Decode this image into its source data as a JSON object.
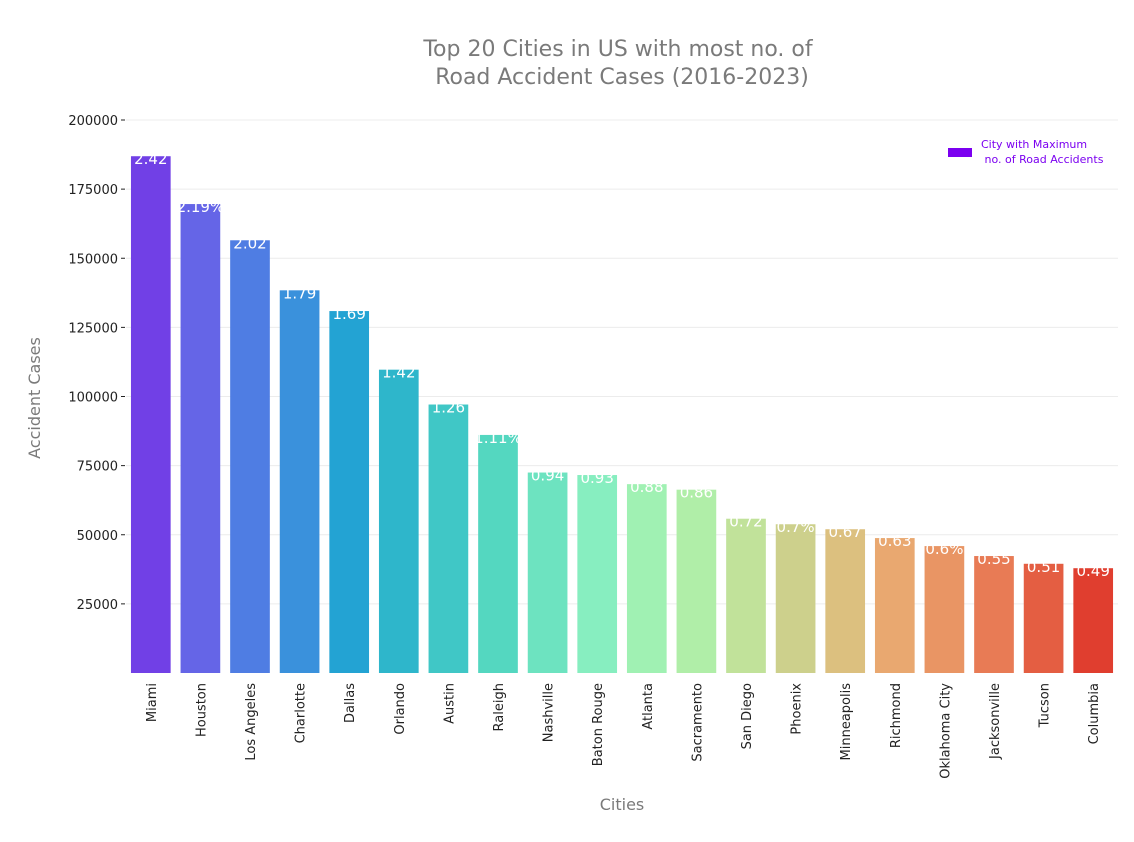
{
  "chart_data": {
    "type": "bar",
    "title_lines": [
      "Top 20 Cities in US with most no. of",
      "Road Accident Cases (2016-2023)"
    ],
    "xlabel": "Cities",
    "ylabel": "Accident Cases",
    "ylim": [
      0,
      200000
    ],
    "yticks": [
      "25000",
      "50000",
      "75000",
      "100000",
      "125000",
      "150000",
      "175000",
      "200000"
    ],
    "grid": "horizontal",
    "legend_placement": "top-right",
    "legend_lines": [
      "City with Maximum",
      " no. of Road Accidents"
    ],
    "legend_color": "#7b00f0",
    "categories": [
      "Miami",
      "Houston",
      "Los Angeles",
      "Charlotte",
      "Dallas",
      "Orlando",
      "Austin",
      "Raleigh",
      "Nashville",
      "Baton Rouge",
      "Atlanta",
      "Sacramento",
      "San Diego",
      "Phoenix",
      "Minneapolis",
      "Richmond",
      "Oklahoma City",
      "Jacksonville",
      "Tucson",
      "Columbia"
    ],
    "values": [
      186900,
      169600,
      156500,
      138400,
      130900,
      109700,
      97100,
      86100,
      72500,
      71600,
      68300,
      66300,
      55800,
      53800,
      52000,
      48800,
      45900,
      42300,
      39500,
      37900
    ],
    "labels": [
      "2.42",
      "2.19%",
      "2.02",
      "1.79",
      "1.69",
      "1.42",
      "1.26",
      "1.11%",
      "0.94",
      "0.93",
      "0.88",
      "0.86",
      "0.72",
      "0.7%",
      "0.67",
      "0.63",
      "0.6%",
      "0.55",
      "0.51",
      "0.49"
    ],
    "colors": [
      "#7140e6",
      "#6565e7",
      "#4f7de3",
      "#3a91dc",
      "#23a3d3",
      "#2eb6cb",
      "#40c7c6",
      "#54d7c0",
      "#6de3c0",
      "#87eec0",
      "#a0f1b3",
      "#b0eea8",
      "#c1e29a",
      "#cdd08c",
      "#dcc07f",
      "#e9a870",
      "#e99564",
      "#e87b55",
      "#e45e42",
      "#e03e2f"
    ]
  }
}
